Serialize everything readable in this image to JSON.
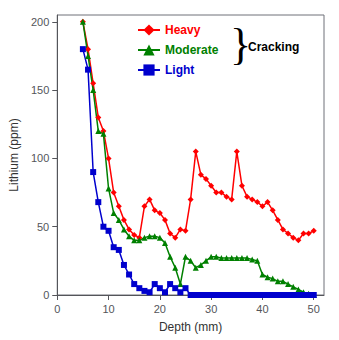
{
  "chart_data": {
    "type": "line",
    "xlabel": "Depth (mm)",
    "ylabel": "Lithium (ppm)",
    "x": [
      5,
      6,
      7,
      8,
      9,
      10,
      11,
      12,
      13,
      14,
      15,
      16,
      17,
      18,
      19,
      20,
      21,
      22,
      23,
      24,
      25,
      26,
      27,
      28,
      29,
      30,
      31,
      32,
      33,
      34,
      35,
      36,
      37,
      38,
      39,
      40,
      41,
      42,
      43,
      44,
      45,
      46,
      47,
      48,
      49,
      50
    ],
    "series": [
      {
        "name": "Heavy",
        "color": "#ff0000",
        "marker": "diamond",
        "values": [
          200,
          180,
          155,
          130,
          120,
          100,
          75,
          65,
          55,
          48,
          44,
          42,
          65,
          70,
          62,
          60,
          55,
          45,
          42,
          48,
          47,
          70,
          105,
          88,
          85,
          80,
          75,
          75,
          72,
          70,
          105,
          80,
          72,
          70,
          68,
          65,
          68,
          62,
          55,
          48,
          45,
          42,
          40,
          45,
          45,
          47
        ]
      },
      {
        "name": "Moderate",
        "color": "#008000",
        "marker": "triangle",
        "values": [
          200,
          175,
          150,
          120,
          118,
          78,
          60,
          55,
          48,
          43,
          40,
          40,
          42,
          43,
          43,
          42,
          38,
          28,
          20,
          8,
          28,
          25,
          20,
          22,
          25,
          28,
          28,
          27,
          27,
          27,
          27,
          27,
          27,
          26,
          25,
          15,
          13,
          12,
          10,
          10,
          8,
          6,
          4,
          2,
          1,
          0
        ]
      },
      {
        "name": "Light",
        "color": "#0000cd",
        "marker": "square",
        "values": [
          180,
          165,
          90,
          68,
          50,
          47,
          35,
          33,
          22,
          15,
          8,
          5,
          3,
          2,
          8,
          5,
          2,
          8,
          5,
          2,
          5,
          0,
          0,
          0,
          0,
          0,
          0,
          0,
          0,
          0,
          0,
          0,
          0,
          0,
          0,
          0,
          0,
          0,
          0,
          0,
          0,
          0,
          0,
          0,
          0,
          0
        ]
      }
    ],
    "xlim": [
      0,
      52
    ],
    "xticks": [
      0,
      10,
      20,
      30,
      40,
      50
    ],
    "ylim": [
      0,
      205
    ],
    "yticks": [
      0,
      50,
      100,
      150,
      200
    ],
    "grid": false,
    "legend": "upper right",
    "annotations": [
      "}",
      "Cracking"
    ]
  }
}
